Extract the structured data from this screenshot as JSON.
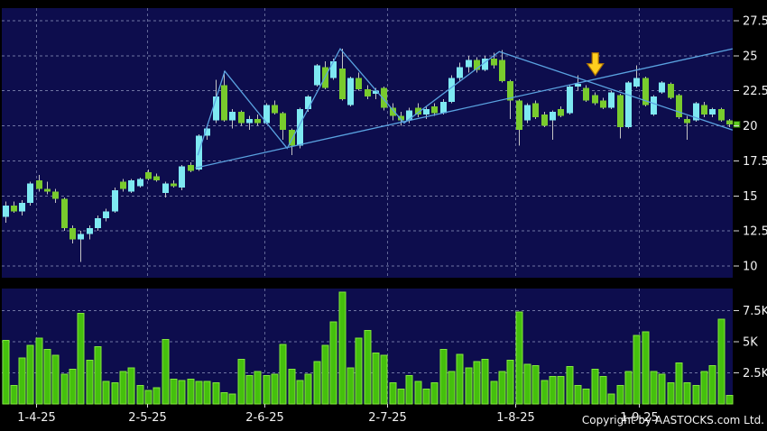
{
  "footer": {
    "copyright": "Copyright by AASTOCKS.com Ltd."
  },
  "colors": {
    "background": "#000000",
    "panel": "#0d0d4d",
    "grid": "#9aa2c8",
    "up": "#7ee9f2",
    "down": "#79cb2d",
    "wick": "#c4c4c4",
    "volume_fill": "#45c00d",
    "volume_edge": "#82e83c",
    "trendline": "#5aa2e0",
    "arrow": "#ffce1e",
    "arrow_outline": "#a86e08",
    "axis_text": "#f2f2f2",
    "tick": "#d8d8d8",
    "marker": "#5ecc22"
  },
  "chart_data": {
    "type": "candlestick",
    "title": "",
    "price_axis_ticks": [
      {
        "label": "27.5",
        "value": 27.5
      },
      {
        "label": "25",
        "value": 25
      },
      {
        "label": "22.5",
        "value": 22.5
      },
      {
        "label": "20",
        "value": 20
      },
      {
        "label": "17.5",
        "value": 17.5
      },
      {
        "label": "15",
        "value": 15
      },
      {
        "label": "12.5",
        "value": 12.5
      },
      {
        "label": "10",
        "value": 10
      }
    ],
    "volume_axis_ticks": [
      {
        "label": "7.5K",
        "value": 7.5
      },
      {
        "label": "5K",
        "value": 5
      },
      {
        "label": "2.5K",
        "value": 2.5
      }
    ],
    "x_labels": [
      "1-4-25",
      "2-5-25",
      "2-6-25",
      "2-7-25",
      "1-8-25",
      "1-9-25"
    ],
    "date_tick_indices": [
      3.7,
      16.9,
      30.8,
      45.4,
      60.6,
      75.3
    ],
    "ylim": [
      10,
      27.5
    ],
    "volume_ylim_k": [
      0,
      7.5
    ],
    "grid": true,
    "last_price": 20.1,
    "ohlcv_format": [
      "open",
      "high",
      "low",
      "close",
      "volume_k"
    ],
    "candles": [
      [
        13.5,
        14.6,
        13.1,
        14.3,
        5.1
      ],
      [
        14.3,
        14.6,
        13.8,
        13.9,
        1.5
      ],
      [
        13.9,
        14.7,
        13.6,
        14.5,
        3.7
      ],
      [
        14.5,
        16.0,
        14.3,
        15.9,
        4.7
      ],
      [
        16.1,
        16.5,
        15.3,
        15.5,
        5.3
      ],
      [
        15.5,
        16.0,
        15.1,
        15.3,
        4.4
      ],
      [
        15.3,
        15.5,
        14.5,
        14.8,
        3.9
      ],
      [
        14.8,
        14.9,
        12.5,
        12.7,
        2.4
      ],
      [
        12.7,
        12.9,
        11.6,
        11.9,
        2.8
      ],
      [
        11.9,
        12.5,
        10.3,
        12.3,
        7.3
      ],
      [
        12.3,
        12.9,
        11.9,
        12.7,
        3.5
      ],
      [
        12.7,
        13.6,
        12.5,
        13.4,
        4.6
      ],
      [
        13.4,
        14.1,
        13.2,
        13.9,
        1.8
      ],
      [
        13.9,
        15.6,
        13.8,
        15.4,
        1.7
      ],
      [
        16.0,
        16.2,
        15.3,
        15.5,
        2.6
      ],
      [
        15.3,
        16.2,
        15.2,
        16.1,
        2.9
      ],
      [
        15.7,
        16.3,
        15.6,
        16.2,
        1.5
      ],
      [
        16.7,
        16.9,
        16.1,
        16.2,
        1.1
      ],
      [
        16.4,
        16.6,
        16.0,
        16.1,
        1.3
      ],
      [
        15.2,
        16.0,
        14.9,
        15.9,
        5.2
      ],
      [
        15.9,
        16.1,
        15.6,
        15.7,
        2.0
      ],
      [
        15.6,
        17.2,
        15.4,
        17.1,
        1.9
      ],
      [
        17.2,
        17.4,
        16.7,
        16.8,
        2.0
      ],
      [
        16.9,
        19.4,
        16.8,
        19.3,
        1.8
      ],
      [
        19.3,
        20.0,
        19.0,
        19.8,
        1.8
      ],
      [
        20.4,
        23.3,
        20.2,
        22.1,
        1.7
      ],
      [
        22.9,
        23.9,
        20.3,
        20.4,
        0.9
      ],
      [
        20.4,
        21.2,
        19.8,
        21.0,
        0.8
      ],
      [
        21.0,
        21.1,
        20.0,
        20.2,
        3.6
      ],
      [
        20.2,
        20.7,
        19.7,
        20.5,
        2.3
      ],
      [
        20.5,
        20.8,
        20.0,
        20.2,
        2.6
      ],
      [
        20.2,
        21.6,
        20.1,
        21.5,
        2.3
      ],
      [
        21.5,
        21.8,
        20.8,
        20.9,
        2.4
      ],
      [
        20.9,
        21.0,
        19.0,
        19.7,
        4.8
      ],
      [
        19.7,
        19.8,
        17.9,
        18.6,
        2.8
      ],
      [
        18.6,
        21.3,
        18.4,
        21.2,
        1.9
      ],
      [
        21.2,
        22.2,
        21.0,
        22.1,
        2.4
      ],
      [
        22.9,
        24.4,
        22.8,
        24.3,
        3.4
      ],
      [
        24.2,
        24.6,
        22.6,
        22.7,
        4.7
      ],
      [
        23.4,
        24.8,
        23.3,
        24.6,
        6.6
      ],
      [
        24.1,
        25.5,
        21.8,
        21.9,
        9.0
      ],
      [
        21.5,
        23.5,
        21.4,
        23.4,
        2.9
      ],
      [
        23.4,
        23.8,
        22.5,
        22.6,
        5.3
      ],
      [
        22.6,
        22.9,
        21.9,
        22.1,
        5.9
      ],
      [
        22.3,
        22.7,
        21.9,
        22.5,
        4.1
      ],
      [
        22.7,
        22.8,
        21.1,
        21.3,
        3.9
      ],
      [
        21.3,
        21.6,
        20.4,
        20.7,
        1.7
      ],
      [
        20.7,
        21.0,
        20.0,
        20.4,
        1.2
      ],
      [
        20.4,
        21.3,
        20.2,
        21.1,
        2.3
      ],
      [
        21.3,
        21.6,
        20.6,
        20.8,
        1.8
      ],
      [
        20.8,
        21.4,
        20.5,
        21.2,
        1.2
      ],
      [
        21.4,
        21.6,
        20.7,
        20.9,
        1.7
      ],
      [
        20.9,
        21.9,
        20.8,
        21.7,
        4.4
      ],
      [
        21.7,
        23.6,
        21.6,
        23.4,
        2.6
      ],
      [
        23.4,
        24.5,
        23.2,
        24.2,
        4.0
      ],
      [
        24.2,
        25.0,
        23.8,
        24.7,
        2.9
      ],
      [
        24.7,
        24.9,
        23.8,
        24.0,
        3.4
      ],
      [
        24.0,
        25.0,
        23.9,
        24.8,
        3.6
      ],
      [
        24.8,
        25.2,
        24.1,
        24.3,
        1.8
      ],
      [
        24.7,
        25.4,
        23.1,
        23.2,
        2.6
      ],
      [
        23.2,
        23.3,
        20.5,
        21.8,
        3.5
      ],
      [
        21.8,
        21.9,
        18.6,
        19.7,
        7.4
      ],
      [
        20.4,
        21.6,
        20.2,
        21.5,
        3.2
      ],
      [
        21.6,
        21.8,
        20.5,
        20.6,
        3.1
      ],
      [
        20.8,
        21.0,
        19.9,
        20.0,
        1.9
      ],
      [
        20.4,
        21.1,
        19.0,
        21.0,
        2.2
      ],
      [
        21.2,
        21.4,
        20.6,
        20.7,
        2.2
      ],
      [
        20.9,
        22.9,
        20.8,
        22.8,
        3.0
      ],
      [
        22.8,
        23.6,
        22.5,
        23.0,
        1.5
      ],
      [
        22.7,
        22.9,
        21.7,
        21.8,
        1.2
      ],
      [
        22.2,
        22.4,
        21.5,
        21.6,
        2.8
      ],
      [
        21.8,
        22.0,
        21.2,
        21.3,
        2.2
      ],
      [
        21.3,
        22.5,
        21.2,
        22.4,
        0.8
      ],
      [
        22.2,
        22.3,
        19.1,
        19.9,
        1.5
      ],
      [
        19.9,
        23.2,
        19.8,
        23.1,
        2.6
      ],
      [
        22.8,
        24.3,
        22.7,
        23.4,
        5.5
      ],
      [
        23.4,
        23.5,
        21.4,
        21.5,
        5.8
      ],
      [
        20.8,
        22.2,
        20.7,
        22.1,
        2.6
      ],
      [
        22.4,
        23.2,
        22.3,
        23.1,
        2.4
      ],
      [
        23.0,
        23.1,
        21.9,
        22.0,
        1.7
      ],
      [
        22.2,
        22.3,
        20.5,
        20.6,
        3.3
      ],
      [
        20.5,
        20.7,
        19.0,
        20.2,
        1.7
      ],
      [
        20.4,
        21.7,
        20.3,
        21.6,
        1.5
      ],
      [
        21.5,
        21.7,
        20.6,
        20.8,
        2.6
      ],
      [
        20.8,
        21.3,
        20.6,
        21.2,
        3.1
      ],
      [
        21.2,
        21.3,
        20.3,
        20.4,
        6.8
      ],
      [
        20.4,
        20.5,
        19.9,
        20.1,
        0.7
      ]
    ],
    "trendlines": {
      "support": [
        {
          "i": 22.6,
          "p": 17.0
        },
        {
          "i": 86.4,
          "p": 25.5
        }
      ],
      "zigzag": [
        {
          "i": 22.9,
          "p": 17.9
        },
        {
          "i": 26.1,
          "p": 23.9
        },
        {
          "i": 33.5,
          "p": 18.4
        },
        {
          "i": 39.8,
          "p": 25.5
        },
        {
          "i": 47.4,
          "p": 20.2
        },
        {
          "i": 58.7,
          "p": 25.3
        },
        {
          "i": 86.4,
          "p": 19.7
        }
      ]
    },
    "annotations": [
      {
        "type": "down-arrow",
        "index": 70.1,
        "price": 23.6
      }
    ]
  }
}
